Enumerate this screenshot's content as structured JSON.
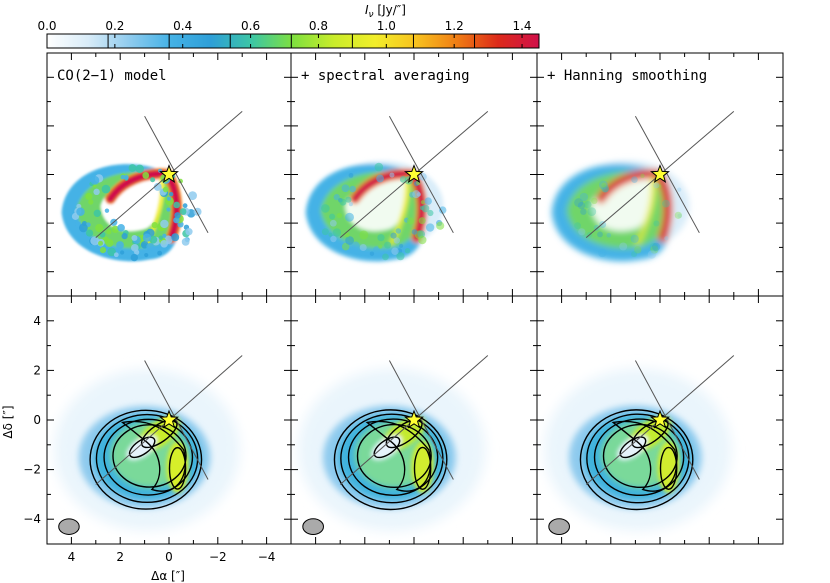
{
  "chart_data": {
    "type": "heatmap",
    "colorbar": {
      "label": "I_ν [Jy/″]",
      "label_main": "I",
      "label_sub": "ν",
      "label_unit": " [Jy/″]",
      "range": [
        0.0,
        1.45
      ],
      "ticks": [
        0.0,
        0.2,
        0.4,
        0.6,
        0.8,
        1.0,
        1.2,
        1.4
      ],
      "tick_labels": [
        "0.0",
        "0.2",
        "0.4",
        "0.6",
        "0.8",
        "1.0",
        "1.2",
        "1.4"
      ],
      "contour_marks": [
        0.18,
        0.36,
        0.54,
        0.72,
        0.9,
        1.08,
        1.26
      ],
      "colors": [
        "#ffffff",
        "#d9ecf8",
        "#8fcbee",
        "#45b2e6",
        "#2e9fd8",
        "#3dc6a4",
        "#7fe03f",
        "#c9ec2a",
        "#f2ee2a",
        "#f7c21f",
        "#f07d14",
        "#dc2a1a",
        "#d0104a"
      ]
    },
    "panels": [
      {
        "id": "row1-col1",
        "title": "CO(2−1) model"
      },
      {
        "id": "row1-col2",
        "title": "+ spectral averaging"
      },
      {
        "id": "row1-col3",
        "title": "+ Hanning smoothing"
      },
      {
        "id": "row2-col1",
        "title": ""
      },
      {
        "id": "row2-col2",
        "title": ""
      },
      {
        "id": "row2-col3",
        "title": ""
      }
    ],
    "xlabel": "Δα [″]",
    "ylabel": "Δδ [″]",
    "xlim": [
      5,
      -5
    ],
    "ylim": [
      -5,
      5
    ],
    "xticks": [
      4,
      2,
      0,
      -2,
      -4
    ],
    "xtick_labels": [
      "4",
      "2",
      "0",
      "−2",
      "−4"
    ],
    "yticks": [
      4,
      2,
      0,
      -2,
      -4
    ],
    "ytick_labels": [
      "4",
      "2",
      "0",
      "−2",
      "−4"
    ],
    "star_position": [
      0,
      0
    ],
    "star_color": "#ffff33"
  }
}
